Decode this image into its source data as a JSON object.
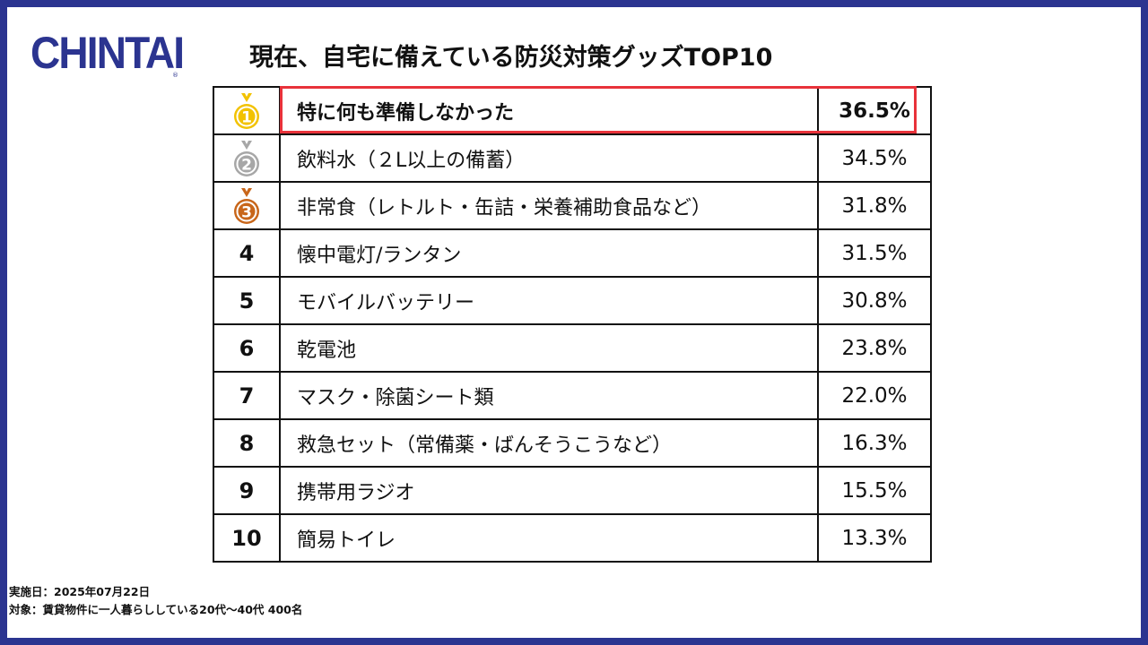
{
  "logo": {
    "text": "CHINTAI",
    "mark": "®"
  },
  "title": "現在、自宅に備えている防災対策グッズTOP10",
  "colors": {
    "frame": "#2b3490",
    "highlight": "#e8323a",
    "gold": "#f2c200",
    "silver": "#a7a7a7",
    "bronze": "#c8661a"
  },
  "rows": [
    {
      "rank": "①",
      "medal": "gold-medal-icon",
      "item": "特に何も準備しなかった",
      "pct": "36.5%"
    },
    {
      "rank": "②",
      "medal": "silver-medal-icon",
      "item": "飲料水（２L以上の備蓄）",
      "pct": "34.5%"
    },
    {
      "rank": "③",
      "medal": "bronze-medal-icon",
      "item": "非常食（レトルト・缶詰・栄養補助食品など）",
      "pct": "31.8%"
    },
    {
      "rank": "4",
      "item": "懐中電灯/ランタン",
      "pct": "31.5%"
    },
    {
      "rank": "5",
      "item": "モバイルバッテリー",
      "pct": "30.8%"
    },
    {
      "rank": "6",
      "item": "乾電池",
      "pct": "23.8%"
    },
    {
      "rank": "7",
      "item": "マスク・除菌シート類",
      "pct": "22.0%"
    },
    {
      "rank": "8",
      "item": "救急セット（常備薬・ばんそうこうなど）",
      "pct": "16.3%"
    },
    {
      "rank": "9",
      "item": "携帯用ラジオ",
      "pct": "15.5%"
    },
    {
      "rank": "10",
      "item": "簡易トイレ",
      "pct": "13.3%"
    }
  ],
  "footer": {
    "date": "実施日：2025年07月22日",
    "target": "対象：賃貸物件に一人暮らししている20代〜40代 400名"
  }
}
